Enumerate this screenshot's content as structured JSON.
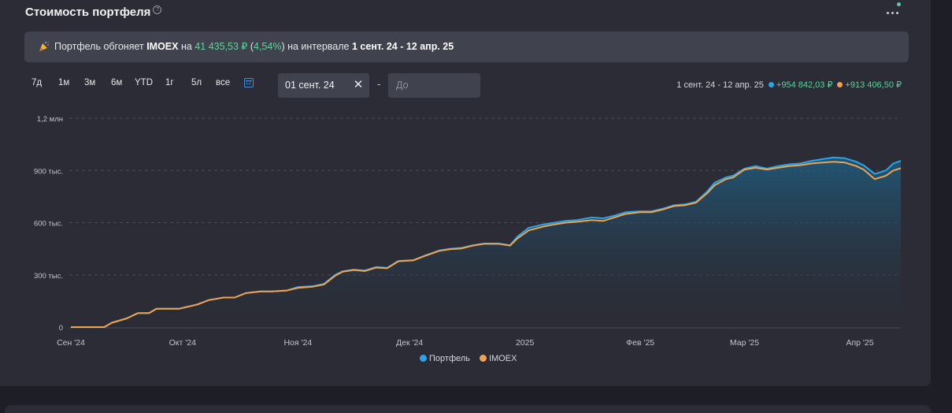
{
  "header": {
    "title": "Стоимость портфеля",
    "help_icon": "question-circle-icon",
    "menu_icon": "more-dots-icon"
  },
  "banner": {
    "icon": "party-popper-icon",
    "text_1": "Портфель обгоняет ",
    "benchmark": "IMOEX",
    "text_2": " на ",
    "amount": "41 435,53 ₽",
    "paren_open": " (",
    "percent": "4,54%",
    "paren_close": ")",
    "text_3": " на интервале ",
    "interval": "1 сент. 24 - 12 апр. 25"
  },
  "periods": [
    "7д",
    "1м",
    "3м",
    "6м",
    "YTD",
    "1г",
    "5л",
    "все"
  ],
  "calendar_icon_label": "12",
  "date_range": {
    "from_value": "01 сент. 24",
    "to_placeholder": "До",
    "separator": "-"
  },
  "summary": {
    "interval": "1 сент. 24 - 12 апр. 25",
    "portfolio_change": "+954 842,03 ₽",
    "benchmark_change": "+913 406,50 ₽"
  },
  "colors": {
    "portfolio": "#2aa6e8",
    "benchmark": "#f0a24f",
    "green": "#5fd49b",
    "accent": "#3a8ee6"
  },
  "chart_data": {
    "type": "area",
    "xlabel": "",
    "ylabel": "",
    "ylim": [
      0,
      1200000
    ],
    "y_ticks": [
      {
        "value": 0,
        "label": "0"
      },
      {
        "value": 300000,
        "label": "300 тыс."
      },
      {
        "value": 600000,
        "label": "600 тыс."
      },
      {
        "value": 900000,
        "label": "900 тыс."
      },
      {
        "value": 1200000,
        "label": "1,2 млн"
      }
    ],
    "xlim": [
      "2024-09-01",
      "2025-04-12"
    ],
    "x_ticks": [
      {
        "value": "2024-09-01",
        "label": "Сен '24"
      },
      {
        "value": "2024-10-01",
        "label": "Окт '24"
      },
      {
        "value": "2024-11-01",
        "label": "Ноя '24"
      },
      {
        "value": "2024-12-01",
        "label": "Дек '24"
      },
      {
        "value": "2025-01-01",
        "label": "2025"
      },
      {
        "value": "2025-02-01",
        "label": "Фев '25"
      },
      {
        "value": "2025-03-01",
        "label": "Мар '25"
      },
      {
        "value": "2025-04-01",
        "label": "Апр '25"
      }
    ],
    "grid": true,
    "legend_position": "bottom",
    "series": [
      {
        "name": "Портфель",
        "points": [
          [
            "2024-09-01",
            0
          ],
          [
            "2024-09-10",
            0
          ],
          [
            "2024-09-12",
            25000
          ],
          [
            "2024-09-16",
            50000
          ],
          [
            "2024-09-19",
            80000
          ],
          [
            "2024-09-22",
            80000
          ],
          [
            "2024-09-24",
            105000
          ],
          [
            "2024-09-30",
            105000
          ],
          [
            "2024-10-02",
            115000
          ],
          [
            "2024-10-05",
            130000
          ],
          [
            "2024-10-08",
            155000
          ],
          [
            "2024-10-12",
            170000
          ],
          [
            "2024-10-15",
            170000
          ],
          [
            "2024-10-18",
            195000
          ],
          [
            "2024-10-22",
            205000
          ],
          [
            "2024-10-25",
            205000
          ],
          [
            "2024-10-29",
            210000
          ],
          [
            "2024-11-01",
            230000
          ],
          [
            "2024-11-05",
            235000
          ],
          [
            "2024-11-08",
            248000
          ],
          [
            "2024-11-11",
            300000
          ],
          [
            "2024-11-13",
            320000
          ],
          [
            "2024-11-16",
            330000
          ],
          [
            "2024-11-19",
            325000
          ],
          [
            "2024-11-22",
            345000
          ],
          [
            "2024-11-25",
            340000
          ],
          [
            "2024-11-28",
            380000
          ],
          [
            "2024-12-02",
            385000
          ],
          [
            "2024-12-05",
            410000
          ],
          [
            "2024-12-09",
            440000
          ],
          [
            "2024-12-12",
            450000
          ],
          [
            "2024-12-15",
            455000
          ],
          [
            "2024-12-18",
            470000
          ],
          [
            "2024-12-21",
            480000
          ],
          [
            "2024-12-25",
            480000
          ],
          [
            "2024-12-28",
            470000
          ],
          [
            "2024-12-30",
            520000
          ],
          [
            "2025-01-02",
            570000
          ],
          [
            "2025-01-06",
            590000
          ],
          [
            "2025-01-09",
            600000
          ],
          [
            "2025-01-12",
            610000
          ],
          [
            "2025-01-15",
            615000
          ],
          [
            "2025-01-19",
            630000
          ],
          [
            "2025-01-22",
            625000
          ],
          [
            "2025-01-25",
            640000
          ],
          [
            "2025-01-28",
            660000
          ],
          [
            "2025-02-01",
            665000
          ],
          [
            "2025-02-04",
            665000
          ],
          [
            "2025-02-07",
            680000
          ],
          [
            "2025-02-10",
            700000
          ],
          [
            "2025-02-13",
            705000
          ],
          [
            "2025-02-16",
            720000
          ],
          [
            "2025-02-19",
            780000
          ],
          [
            "2025-02-21",
            830000
          ],
          [
            "2025-02-24",
            860000
          ],
          [
            "2025-02-26",
            870000
          ],
          [
            "2025-03-01",
            910000
          ],
          [
            "2025-03-04",
            925000
          ],
          [
            "2025-03-07",
            910000
          ],
          [
            "2025-03-10",
            925000
          ],
          [
            "2025-03-13",
            935000
          ],
          [
            "2025-03-16",
            940000
          ],
          [
            "2025-03-19",
            955000
          ],
          [
            "2025-03-22",
            965000
          ],
          [
            "2025-03-25",
            975000
          ],
          [
            "2025-03-28",
            970000
          ],
          [
            "2025-03-31",
            950000
          ],
          [
            "2025-04-02",
            930000
          ],
          [
            "2025-04-05",
            880000
          ],
          [
            "2025-04-08",
            900000
          ],
          [
            "2025-04-10",
            940000
          ],
          [
            "2025-04-12",
            955000
          ]
        ]
      },
      {
        "name": "IMOEX",
        "points": [
          [
            "2024-09-01",
            0
          ],
          [
            "2024-09-10",
            0
          ],
          [
            "2024-09-12",
            25000
          ],
          [
            "2024-09-16",
            50000
          ],
          [
            "2024-09-19",
            80000
          ],
          [
            "2024-09-22",
            80000
          ],
          [
            "2024-09-24",
            105000
          ],
          [
            "2024-09-30",
            105000
          ],
          [
            "2024-10-02",
            115000
          ],
          [
            "2024-10-05",
            130000
          ],
          [
            "2024-10-08",
            155000
          ],
          [
            "2024-10-12",
            170000
          ],
          [
            "2024-10-15",
            170000
          ],
          [
            "2024-10-18",
            195000
          ],
          [
            "2024-10-22",
            205000
          ],
          [
            "2024-10-25",
            205000
          ],
          [
            "2024-10-29",
            210000
          ],
          [
            "2024-11-01",
            225000
          ],
          [
            "2024-11-05",
            232000
          ],
          [
            "2024-11-08",
            245000
          ],
          [
            "2024-11-11",
            295000
          ],
          [
            "2024-11-13",
            318000
          ],
          [
            "2024-11-16",
            328000
          ],
          [
            "2024-11-19",
            322000
          ],
          [
            "2024-11-22",
            342000
          ],
          [
            "2024-11-25",
            338000
          ],
          [
            "2024-11-28",
            378000
          ],
          [
            "2024-12-02",
            383000
          ],
          [
            "2024-12-05",
            408000
          ],
          [
            "2024-12-09",
            438000
          ],
          [
            "2024-12-12",
            448000
          ],
          [
            "2024-12-15",
            452000
          ],
          [
            "2024-12-18",
            468000
          ],
          [
            "2024-12-21",
            478000
          ],
          [
            "2024-12-25",
            478000
          ],
          [
            "2024-12-28",
            468000
          ],
          [
            "2024-12-30",
            510000
          ],
          [
            "2025-01-02",
            555000
          ],
          [
            "2025-01-06",
            578000
          ],
          [
            "2025-01-09",
            590000
          ],
          [
            "2025-01-12",
            600000
          ],
          [
            "2025-01-15",
            605000
          ],
          [
            "2025-01-19",
            615000
          ],
          [
            "2025-01-22",
            610000
          ],
          [
            "2025-01-25",
            630000
          ],
          [
            "2025-01-28",
            650000
          ],
          [
            "2025-02-01",
            660000
          ],
          [
            "2025-02-04",
            660000
          ],
          [
            "2025-02-07",
            675000
          ],
          [
            "2025-02-10",
            695000
          ],
          [
            "2025-02-13",
            700000
          ],
          [
            "2025-02-16",
            715000
          ],
          [
            "2025-02-19",
            770000
          ],
          [
            "2025-02-21",
            815000
          ],
          [
            "2025-02-24",
            850000
          ],
          [
            "2025-02-26",
            860000
          ],
          [
            "2025-03-01",
            905000
          ],
          [
            "2025-03-04",
            915000
          ],
          [
            "2025-03-07",
            905000
          ],
          [
            "2025-03-10",
            915000
          ],
          [
            "2025-03-13",
            925000
          ],
          [
            "2025-03-16",
            930000
          ],
          [
            "2025-03-19",
            940000
          ],
          [
            "2025-03-22",
            945000
          ],
          [
            "2025-03-25",
            950000
          ],
          [
            "2025-03-28",
            945000
          ],
          [
            "2025-03-31",
            925000
          ],
          [
            "2025-04-02",
            905000
          ],
          [
            "2025-04-05",
            850000
          ],
          [
            "2025-04-08",
            870000
          ],
          [
            "2025-04-10",
            900000
          ],
          [
            "2025-04-12",
            913000
          ]
        ]
      }
    ]
  }
}
